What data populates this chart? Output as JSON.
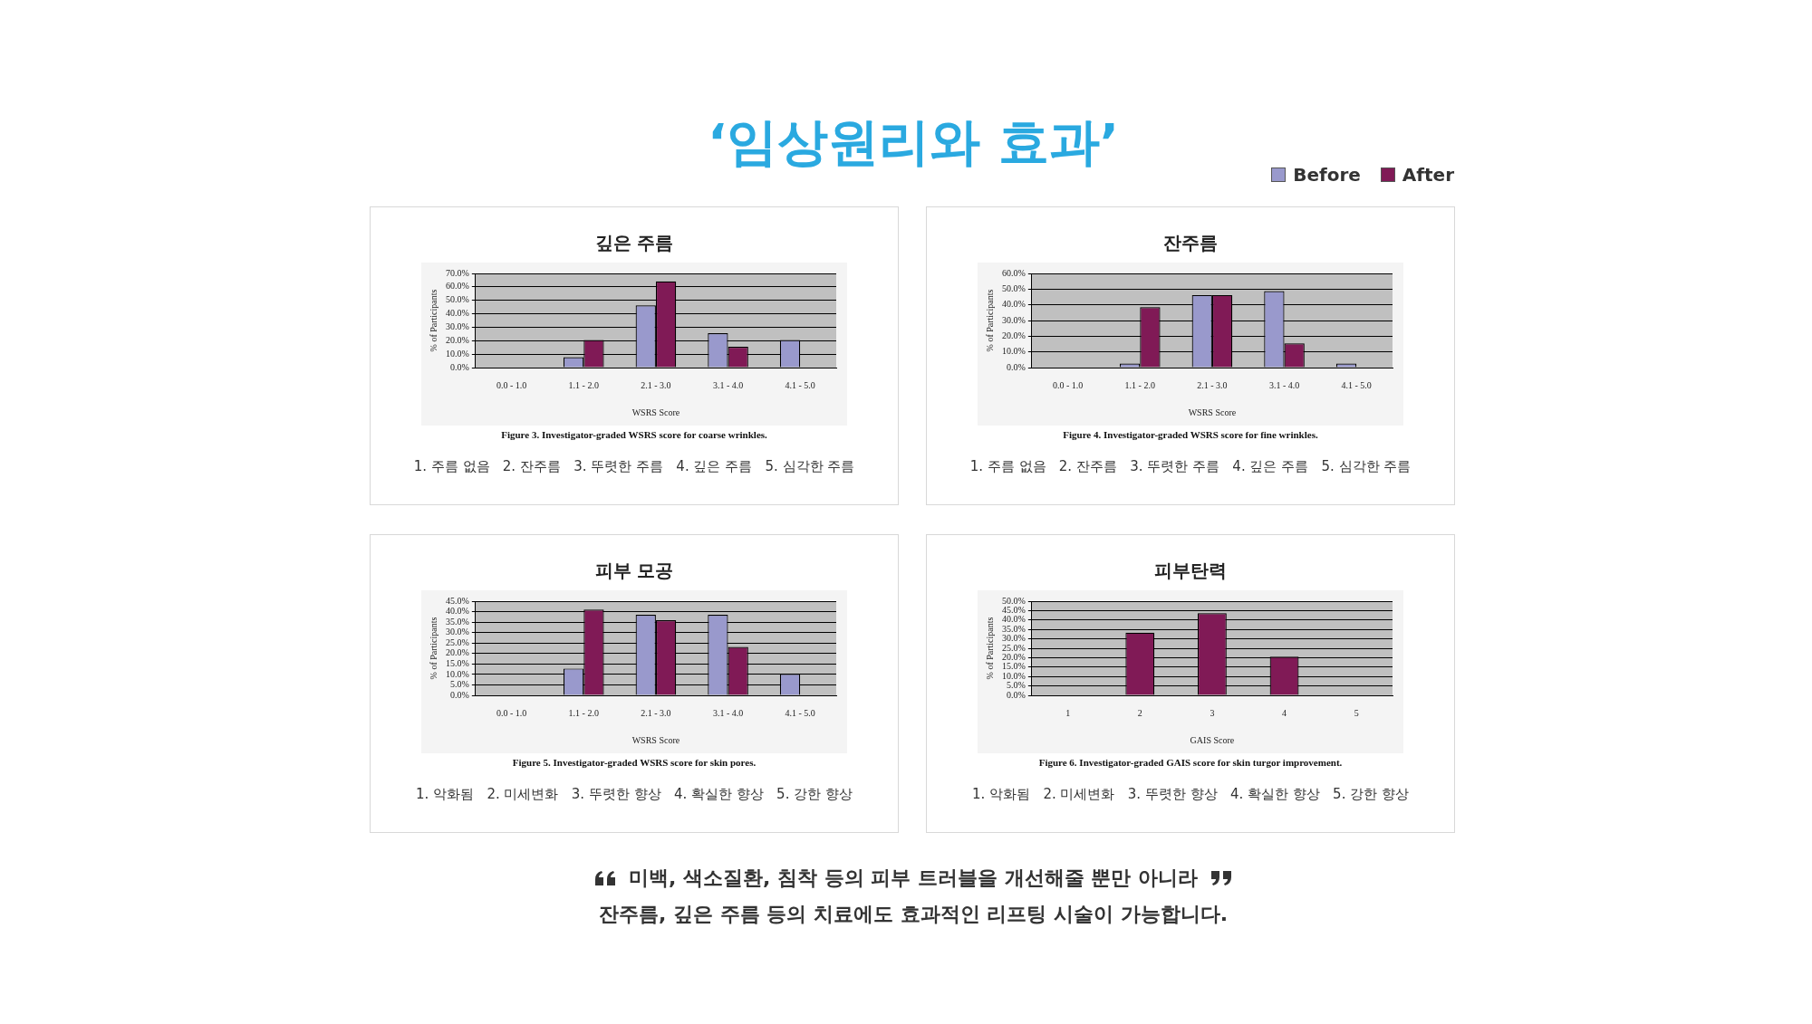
{
  "chart_data": [
    {
      "type": "bar",
      "title": "깊은 주름",
      "xlabel": "WSRS Score",
      "ylabel": "% of Participants",
      "categories": [
        "0.0 - 1.0",
        "1.1 - 2.0",
        "2.1 - 3.0",
        "3.1 - 4.0",
        "4.1 - 5.0"
      ],
      "series": [
        {
          "color": "#9999cc",
          "values": [
            0,
            7.7,
            46.2,
            25.6,
            20.5
          ]
        },
        {
          "color": "#801a56",
          "values": [
            0,
            20.5,
            64.1,
            15.4,
            0
          ]
        }
      ],
      "ylim": [
        0,
        70
      ],
      "yticks": [
        {
          "value": 0,
          "label": "0.0%"
        },
        {
          "value": 10,
          "label": "10.0%"
        },
        {
          "value": 20,
          "label": "20.0%"
        },
        {
          "value": 30,
          "label": "30.0%"
        },
        {
          "value": 40,
          "label": "40.0%"
        },
        {
          "value": 50,
          "label": "50.0%"
        },
        {
          "value": 60,
          "label": "60.0%"
        },
        {
          "value": 70,
          "label": "70.0%"
        }
      ],
      "grid": "y",
      "annotations": [
        "Figure 3. Investigator-graded WSRS score for coarse wrinkles.",
        "1. 주름 없음   2. 잔주름   3. 뚜렷한 주름   4. 깊은 주름   5. 심각한 주름"
      ]
    },
    {
      "type": "bar",
      "title": "잔주름",
      "xlabel": "WSRS Score",
      "ylabel": "% of Participants",
      "categories": [
        "0.0 - 1.0",
        "1.1 - 2.0",
        "2.1 - 3.0",
        "3.1 - 4.0",
        "4.1 - 5.0"
      ],
      "series": [
        {
          "name": "Before",
          "color": "#9999cc",
          "values": [
            0,
            2.6,
            46.2,
            48.7,
            2.6
          ]
        },
        {
          "name": "After",
          "color": "#801a56",
          "values": [
            0,
            38.5,
            46.2,
            15.4,
            0
          ]
        }
      ],
      "ylim": [
        0,
        60
      ],
      "yticks": [
        {
          "value": 0,
          "label": "0.0%"
        },
        {
          "value": 10,
          "label": "10.0%"
        },
        {
          "value": 20,
          "label": "20.0%"
        },
        {
          "value": 30,
          "label": "30.0%"
        },
        {
          "value": 40,
          "label": "40.0%"
        },
        {
          "value": 50,
          "label": "50.0%"
        },
        {
          "value": 60,
          "label": "60.0%"
        }
      ],
      "grid": "y",
      "legend": "top right",
      "annotations": [
        "Figure 4. Investigator-graded WSRS score for fine wrinkles.",
        "1. 주름 없음   2. 잔주름   3. 뚜렷한 주름   4. 깊은 주름   5. 심각한 주름"
      ]
    },
    {
      "type": "bar",
      "title": "피부 모공",
      "xlabel": "WSRS Score",
      "ylabel": "% of Participants",
      "categories": [
        "0.0 - 1.0",
        "1.1 - 2.0",
        "2.1 - 3.0",
        "3.1 - 4.0",
        "4.1 - 5.0"
      ],
      "series": [
        {
          "color": "#9999cc",
          "values": [
            0,
            12.8,
            38.5,
            38.5,
            10.3
          ]
        },
        {
          "color": "#801a56",
          "values": [
            0,
            41,
            35.9,
            23.1,
            0
          ]
        }
      ],
      "ylim": [
        0,
        45
      ],
      "yticks": [
        {
          "value": 0,
          "label": "0.0%"
        },
        {
          "value": 5,
          "label": "5.0%"
        },
        {
          "value": 10,
          "label": "10.0%"
        },
        {
          "value": 15,
          "label": "15.0%"
        },
        {
          "value": 20,
          "label": "20.0%"
        },
        {
          "value": 25,
          "label": "25.0%"
        },
        {
          "value": 30,
          "label": "30.0%"
        },
        {
          "value": 35,
          "label": "35.0%"
        },
        {
          "value": 40,
          "label": "40.0%"
        },
        {
          "value": 45,
          "label": "45.0%"
        }
      ],
      "grid": "y",
      "annotations": [
        "Figure 5. Investigator-graded WSRS score for skin pores.",
        "1. 악화됨   2. 미세변화   3. 뚜렷한 향상   4. 확실한 향상   5. 강한 향상"
      ]
    },
    {
      "type": "bar",
      "title": "피부탄력",
      "xlabel": "GAIS Score",
      "ylabel": "% of Participants",
      "categories": [
        "1",
        "2",
        "3",
        "4",
        "5"
      ],
      "series": [
        {
          "color": "#801a56",
          "values": [
            0,
            33.3,
            43.6,
            20.5,
            0
          ]
        }
      ],
      "ylim": [
        0,
        50
      ],
      "yticks": [
        {
          "value": 0,
          "label": "0.0%"
        },
        {
          "value": 5,
          "label": "5.0%"
        },
        {
          "value": 10,
          "label": "10.0%"
        },
        {
          "value": 15,
          "label": "15.0%"
        },
        {
          "value": 20,
          "label": "20.0%"
        },
        {
          "value": 25,
          "label": "25.0%"
        },
        {
          "value": 30,
          "label": "30.0%"
        },
        {
          "value": 35,
          "label": "35.0%"
        },
        {
          "value": 40,
          "label": "40.0%"
        },
        {
          "value": 45,
          "label": "45.0%"
        },
        {
          "value": 50,
          "label": "50.0%"
        }
      ],
      "grid": "y",
      "annotations": [
        "Figure 6. Investigator-graded GAIS score for skin turgor improvement.",
        "1. 악화됨   2. 미세변화   3. 뚜렷한 향상   4. 확실한 향상   5. 강한 향상"
      ]
    },
    {
      "type": "other",
      "title": "‘임상원리와 효과’",
      "annotations": [
        "미백, 색소질환, 침착 등의 피부 트러블을 개선해줄 뿐만 아니라",
        "잔주름, 깊은 주름 등의 치료에도 효과적인 리프팅 시술이 가능합니다."
      ]
    }
  ]
}
